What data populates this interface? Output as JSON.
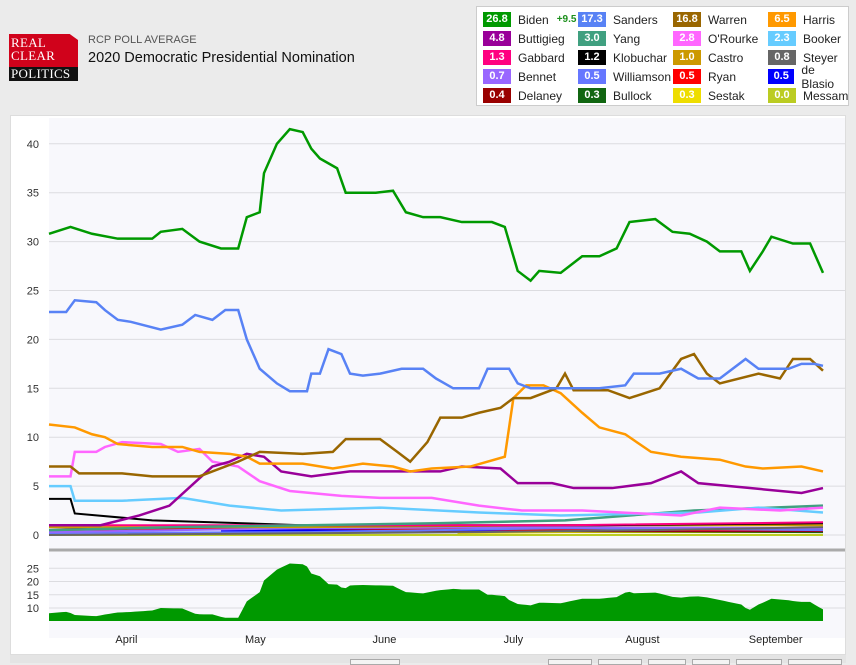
{
  "header": {
    "subtitle": "RCP POLL AVERAGE",
    "title": "2020 Democratic Presidential Nomination",
    "logo": [
      "REAL",
      "CLEAR",
      "POLITICS"
    ]
  },
  "legend": [
    {
      "name": "Biden",
      "value": "26.8",
      "spread": "+9.5",
      "color": "#009900"
    },
    {
      "name": "Sanders",
      "value": "17.3",
      "color": "#5882f5"
    },
    {
      "name": "Warren",
      "value": "16.8",
      "color": "#996600"
    },
    {
      "name": "Harris",
      "value": "6.5",
      "color": "#ff9900"
    },
    {
      "name": "Buttigieg",
      "value": "4.8",
      "color": "#990099"
    },
    {
      "name": "Yang",
      "value": "3.0",
      "color": "#40a080"
    },
    {
      "name": "O'Rourke",
      "value": "2.8",
      "color": "#ff66ff"
    },
    {
      "name": "Booker",
      "value": "2.3",
      "color": "#66ccff"
    },
    {
      "name": "Gabbard",
      "value": "1.3",
      "color": "#ff0080"
    },
    {
      "name": "Klobuchar",
      "value": "1.2",
      "color": "#000000"
    },
    {
      "name": "Castro",
      "value": "1.0",
      "color": "#cc9900"
    },
    {
      "name": "Steyer",
      "value": "0.8",
      "color": "#666666"
    },
    {
      "name": "Bennet",
      "value": "0.7",
      "color": "#9966ff"
    },
    {
      "name": "Williamson",
      "value": "0.5",
      "color": "#6677ff"
    },
    {
      "name": "Ryan",
      "value": "0.5",
      "color": "#ff0000"
    },
    {
      "name": "de Blasio",
      "value": "0.5",
      "color": "#0000ff"
    },
    {
      "name": "Delaney",
      "value": "0.4",
      "color": "#990000"
    },
    {
      "name": "Bullock",
      "value": "0.3",
      "color": "#116611"
    },
    {
      "name": "Sestak",
      "value": "0.3",
      "color": "#eedd00"
    },
    {
      "name": "Messam",
      "value": "0.0",
      "color": "#bbcc22"
    }
  ],
  "chart_data": {
    "type": "line",
    "x_unit": "days since mid-March 2019",
    "ylim": [
      0,
      42
    ],
    "yticks": [
      0,
      5,
      10,
      15,
      20,
      25,
      30,
      35,
      40
    ],
    "xticks": [
      {
        "label": "April",
        "x": 18
      },
      {
        "label": "May",
        "x": 48
      },
      {
        "label": "June",
        "x": 78
      },
      {
        "label": "July",
        "x": 108
      },
      {
        "label": "August",
        "x": 138
      },
      {
        "label": "September",
        "x": 169
      }
    ],
    "spread_panel": {
      "series": "Biden lead over Sanders",
      "yticks": [
        10,
        15,
        20,
        25
      ],
      "ylim": [
        5,
        29
      ]
    },
    "series": [
      {
        "name": "Biden",
        "x": [
          0,
          5,
          10,
          16,
          24,
          26,
          31,
          35,
          40,
          44,
          46,
          49,
          50,
          53,
          56,
          59,
          61,
          63,
          67,
          69,
          73,
          76,
          80,
          83,
          87,
          91,
          96,
          103,
          106,
          109,
          112,
          114,
          119,
          124,
          128,
          132,
          135,
          141,
          145,
          149,
          153,
          156,
          161,
          163,
          166,
          168,
          173,
          177,
          180
        ],
        "y": [
          30.8,
          31.5,
          30.8,
          30.3,
          30.3,
          31,
          31.3,
          30,
          29.3,
          29.3,
          32.5,
          33,
          37,
          40,
          41.5,
          41.2,
          39.5,
          38.5,
          37.5,
          35,
          35,
          35,
          35.2,
          33,
          32.5,
          32.5,
          32,
          32,
          31.5,
          27,
          26,
          27,
          26.8,
          28.5,
          28.5,
          29.3,
          32,
          32.3,
          31,
          30.8,
          30,
          29,
          29,
          27,
          29,
          30.5,
          29.8,
          29.8,
          26.8
        ]
      },
      {
        "name": "Sanders",
        "x": [
          0,
          4,
          6,
          11,
          13,
          16,
          19,
          26,
          31,
          34,
          38,
          41,
          44,
          46,
          49,
          53,
          56,
          60,
          61,
          63,
          65,
          68,
          70,
          73,
          77,
          82,
          87,
          90,
          94,
          100,
          102,
          107,
          109,
          112,
          119,
          128,
          134,
          136,
          142,
          147,
          151,
          156,
          162,
          165,
          172,
          175,
          178,
          180
        ],
        "y": [
          22.8,
          22.8,
          24,
          23.8,
          23,
          22,
          21.8,
          21,
          21.5,
          22.5,
          22,
          23,
          23,
          20,
          17,
          15.5,
          14.7,
          14.7,
          16.5,
          16.5,
          19,
          18.5,
          16.5,
          16.3,
          16.5,
          17,
          17,
          16,
          15,
          15,
          17,
          17,
          15.5,
          15,
          15,
          15,
          15.3,
          16.5,
          16.5,
          17,
          16,
          16,
          18,
          17,
          17,
          17.5,
          17.5,
          17.3
        ]
      },
      {
        "name": "Warren",
        "x": [
          0,
          5,
          7,
          17,
          24,
          35,
          44,
          49,
          59,
          66,
          69,
          77,
          81,
          84,
          88,
          91,
          96,
          100,
          105,
          108,
          112,
          118,
          120,
          122,
          130,
          135,
          142,
          147,
          150,
          153,
          156,
          165,
          170,
          173,
          177,
          180
        ],
        "y": [
          7,
          7,
          6.3,
          6.3,
          6,
          6,
          7.5,
          8.5,
          8.3,
          8.5,
          9.8,
          9.8,
          8.5,
          7.5,
          9.5,
          12,
          12,
          12.5,
          13,
          14,
          14,
          15,
          16.5,
          14.8,
          14.8,
          14,
          15,
          18,
          18.5,
          16.5,
          15.5,
          16.5,
          16,
          18,
          18,
          16.8
        ]
      },
      {
        "name": "Harris",
        "x": [
          0,
          6,
          10,
          13,
          16,
          24,
          31,
          35,
          42,
          46,
          49,
          59,
          66,
          73,
          80,
          84,
          89,
          98,
          106,
          107,
          108,
          111,
          115,
          119,
          124,
          128,
          134,
          140,
          147,
          156,
          162,
          166,
          175,
          180
        ],
        "y": [
          11.3,
          11,
          10.3,
          10,
          9.3,
          9,
          9,
          8.5,
          8.3,
          8,
          7.3,
          7.3,
          6.8,
          7.3,
          7,
          6.5,
          6.8,
          7,
          8,
          11,
          14,
          15.3,
          15.3,
          14.5,
          12.5,
          11,
          10.3,
          8.5,
          8,
          7.7,
          7,
          6.8,
          7,
          6.5
        ]
      },
      {
        "name": "Buttigieg",
        "x": [
          0,
          12,
          21,
          28,
          33,
          38,
          42,
          46,
          50,
          54,
          61,
          70,
          82,
          91,
          96,
          105,
          109,
          117,
          122,
          131,
          140,
          147,
          151,
          163,
          175,
          180
        ],
        "y": [
          1,
          1,
          2,
          3,
          5,
          7,
          7.5,
          8.3,
          8,
          6.5,
          6,
          6.5,
          6.5,
          6.5,
          7,
          6.8,
          5.3,
          5.3,
          4.8,
          4.8,
          5.3,
          6.5,
          5.3,
          4.8,
          4.3,
          4.8
        ]
      },
      {
        "name": "O'Rourke",
        "x": [
          0,
          5,
          6,
          11,
          13,
          17,
          26,
          30,
          35,
          38,
          44,
          49,
          56,
          68,
          77,
          89,
          100,
          110,
          124,
          147,
          156,
          170,
          180
        ],
        "y": [
          6,
          6,
          8.5,
          8.5,
          9,
          9.5,
          9.3,
          8.5,
          8.8,
          7.5,
          7,
          5.5,
          4.5,
          4,
          3.8,
          3.8,
          3,
          2.5,
          2.5,
          2,
          2.8,
          2.5,
          2.8
        ]
      },
      {
        "name": "Booker",
        "x": [
          0,
          5,
          6,
          17,
          31,
          42,
          54,
          77,
          100,
          119,
          151,
          165,
          180
        ],
        "y": [
          5,
          5,
          3.5,
          3.5,
          3.8,
          3,
          2.5,
          2.8,
          2.3,
          2,
          2.3,
          2.8,
          2.3
        ]
      },
      {
        "name": "Yang",
        "x": [
          0,
          30,
          60,
          90,
          120,
          150,
          180
        ],
        "y": [
          0.5,
          0.8,
          1,
          1.2,
          1.5,
          2.5,
          3
        ]
      },
      {
        "name": "Gabbard",
        "x": [
          0,
          60,
          120,
          180
        ],
        "y": [
          1,
          1,
          1,
          1.3
        ]
      },
      {
        "name": "Klobuchar",
        "x": [
          0,
          5,
          6,
          24,
          59,
          86,
          128,
          180
        ],
        "y": [
          3.7,
          3.7,
          2.2,
          1.5,
          1,
          1,
          1,
          1.2
        ]
      },
      {
        "name": "Castro",
        "x": [
          0,
          60,
          120,
          180
        ],
        "y": [
          0.8,
          0.8,
          1,
          1
        ]
      },
      {
        "name": "Steyer",
        "x": [
          0,
          100,
          140,
          180
        ],
        "y": [
          0,
          0.3,
          0.5,
          0.8
        ]
      },
      {
        "name": "Bennet",
        "x": [
          0,
          60,
          120,
          180
        ],
        "y": [
          0.3,
          0.7,
          0.8,
          0.7
        ]
      },
      {
        "name": "Williamson",
        "x": [
          0,
          60,
          120,
          180
        ],
        "y": [
          0.2,
          0.3,
          0.7,
          0.5
        ]
      },
      {
        "name": "Ryan",
        "x": [
          0,
          60,
          120,
          180
        ],
        "y": [
          0.5,
          0.7,
          0.5,
          0.5
        ]
      },
      {
        "name": "de Blasio",
        "x": [
          40,
          60,
          120,
          180
        ],
        "y": [
          0.4,
          0.5,
          0.5,
          0.5
        ]
      },
      {
        "name": "Delaney",
        "x": [
          0,
          60,
          120,
          180
        ],
        "y": [
          0.8,
          0.5,
          0.4,
          0.4
        ]
      },
      {
        "name": "Bullock",
        "x": [
          40,
          60,
          120,
          180
        ],
        "y": [
          0.3,
          0.4,
          0.4,
          0.3
        ]
      },
      {
        "name": "Sestak",
        "x": [
          95,
          120,
          180
        ],
        "y": [
          0.2,
          0.3,
          0.3
        ]
      },
      {
        "name": "Messam",
        "x": [
          0,
          60,
          120,
          180
        ],
        "y": [
          0,
          0,
          0,
          0
        ]
      }
    ]
  }
}
